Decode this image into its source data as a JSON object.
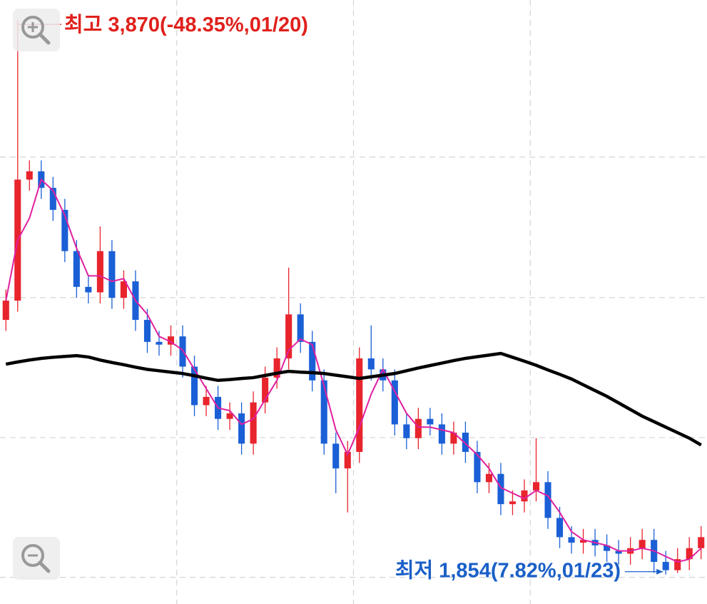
{
  "chart_data": {
    "type": "candlestick",
    "up_color": "#e8242c",
    "down_color": "#1a5fd6",
    "ylim": [
      1747,
      3943
    ],
    "ygrid": [
      3372,
      2861,
      2352,
      1844
    ],
    "xlim": [
      0,
      60
    ],
    "xgrid": [
      15,
      30,
      45
    ],
    "grid": true,
    "open": [
      2780,
      2850,
      3290,
      3320,
      3260,
      3180,
      3030,
      2900,
      2880,
      3030,
      2860,
      2920,
      2780,
      2700,
      2690,
      2720,
      2610,
      2470,
      2500,
      2420,
      2440,
      2330,
      2480,
      2570,
      2640,
      2800,
      2700,
      2560,
      2330,
      2240,
      2300,
      2640,
      2600,
      2560,
      2400,
      2350,
      2420,
      2400,
      2330,
      2370,
      2300,
      2190,
      2220,
      2110,
      2120,
      2160,
      2190,
      2060,
      1990,
      1970,
      1980,
      1960,
      1940,
      1930,
      1950,
      1980,
      1900,
      1870,
      1910,
      1950
    ],
    "high": [
      2890,
      3870,
      3360,
      3360,
      3300,
      3220,
      3070,
      2940,
      3120,
      3070,
      2960,
      2960,
      2820,
      2740,
      2760,
      2760,
      2650,
      2540,
      2540,
      2480,
      2480,
      2520,
      2610,
      2680,
      2970,
      2840,
      2740,
      2600,
      2370,
      2340,
      2680,
      2760,
      2640,
      2600,
      2440,
      2460,
      2460,
      2440,
      2410,
      2410,
      2340,
      2260,
      2260,
      2160,
      2200,
      2350,
      2230,
      2100,
      2030,
      2020,
      2020,
      2000,
      1980,
      1990,
      2020,
      2020,
      1940,
      1950,
      1990,
      2030
    ],
    "low": [
      2740,
      2810,
      3250,
      3220,
      3140,
      2990,
      2860,
      2840,
      2840,
      2820,
      2820,
      2740,
      2660,
      2650,
      2650,
      2570,
      2430,
      2430,
      2380,
      2380,
      2290,
      2290,
      2440,
      2530,
      2600,
      2660,
      2520,
      2290,
      2150,
      2080,
      2260,
      2560,
      2520,
      2360,
      2310,
      2310,
      2360,
      2290,
      2290,
      2260,
      2150,
      2150,
      2070,
      2070,
      2080,
      2120,
      2020,
      1950,
      1930,
      1930,
      1920,
      1900,
      1890,
      1890,
      1910,
      1860,
      1854,
      1860,
      1870,
      1910
    ],
    "close": [
      2850,
      3290,
      3320,
      3260,
      3180,
      3030,
      2900,
      2880,
      3030,
      2860,
      2920,
      2780,
      2700,
      2690,
      2720,
      2610,
      2470,
      2500,
      2420,
      2440,
      2330,
      2480,
      2570,
      2640,
      2800,
      2700,
      2560,
      2330,
      2240,
      2300,
      2640,
      2600,
      2560,
      2400,
      2350,
      2420,
      2400,
      2330,
      2370,
      2300,
      2190,
      2220,
      2110,
      2120,
      2160,
      2190,
      2060,
      1990,
      1970,
      1980,
      1960,
      1940,
      1930,
      1950,
      1980,
      1900,
      1870,
      1910,
      1950,
      1990
    ],
    "series": [
      {
        "color": "#e020a0",
        "values": [
          2850,
          3070,
          3150,
          3290,
          3250,
          3160,
          3040,
          2940,
          2940,
          2920,
          2930,
          2850,
          2800,
          2720,
          2700,
          2670,
          2600,
          2530,
          2460,
          2450,
          2400,
          2420,
          2490,
          2560,
          2670,
          2710,
          2690,
          2540,
          2380,
          2290,
          2390,
          2510,
          2600,
          2520,
          2440,
          2390,
          2390,
          2380,
          2370,
          2330,
          2290,
          2240,
          2170,
          2150,
          2130,
          2160,
          2140,
          2080,
          2010,
          1980,
          1970,
          1960,
          1940,
          1940,
          1950,
          1940,
          1920,
          1900,
          1910,
          1950
        ]
      },
      {
        "color": "#000000",
        "values": [
          2619,
          2627,
          2634,
          2640,
          2644,
          2647,
          2650,
          2645,
          2634,
          2625,
          2617,
          2608,
          2600,
          2595,
          2590,
          2585,
          2577,
          2568,
          2560,
          2563,
          2567,
          2570,
          2578,
          2586,
          2593,
          2590,
          2588,
          2585,
          2579,
          2573,
          2567,
          2573,
          2579,
          2585,
          2595,
          2605,
          2614,
          2623,
          2632,
          2640,
          2646,
          2652,
          2658,
          2644,
          2630,
          2615,
          2598,
          2582,
          2565,
          2544,
          2523,
          2502,
          2478,
          2454,
          2430,
          2410,
          2390,
          2370,
          2350,
          2325
        ]
      }
    ],
    "high_label": {
      "text": "최고 3,870(-48.35%,01/20)",
      "color": "#e0201c"
    },
    "low_label": {
      "text": "최저 1,854(7.82%,01/23)",
      "color": "#1a5fc8"
    }
  }
}
